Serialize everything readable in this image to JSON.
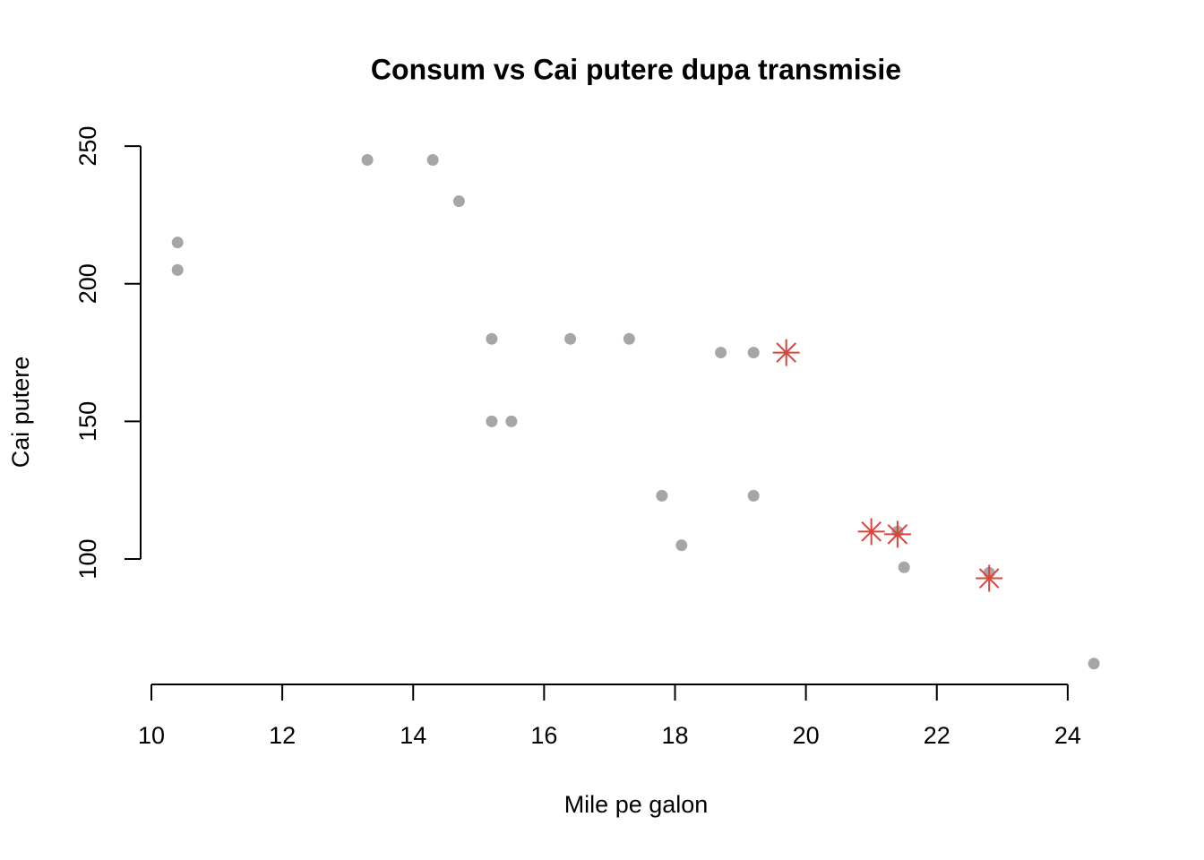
{
  "chart_data": {
    "type": "scatter",
    "title": "Consum vs Cai putere dupa transmisie",
    "x_label": "Mile pe galon",
    "y_label": "Cai putere",
    "xlim": [
      9.84,
      24.96
    ],
    "ylim": [
      54.68,
      252.32
    ],
    "xticks": [
      10,
      12,
      14,
      16,
      18,
      20,
      22,
      24
    ],
    "yticks": [
      100,
      150,
      200,
      250
    ],
    "series": [
      {
        "color": "#a6a6a6",
        "marker": "circle",
        "x": [
          10.4,
          10.4,
          13.3,
          14.3,
          14.7,
          15.2,
          16.4,
          17.3,
          18.7,
          19.2,
          15.2,
          15.5,
          17.8,
          19.2,
          18.1,
          21.4,
          21.5,
          22.8,
          24.4
        ],
        "values": [
          215,
          205,
          245,
          245,
          230,
          180,
          180,
          180,
          175,
          175,
          150,
          150,
          123,
          123,
          105,
          110,
          97,
          95,
          62
        ]
      },
      {
        "color": "#d9453d",
        "marker": "asterisk",
        "x": [
          19.7,
          21.0,
          21.4,
          22.8
        ],
        "values": [
          175,
          110,
          109,
          93
        ]
      }
    ]
  }
}
